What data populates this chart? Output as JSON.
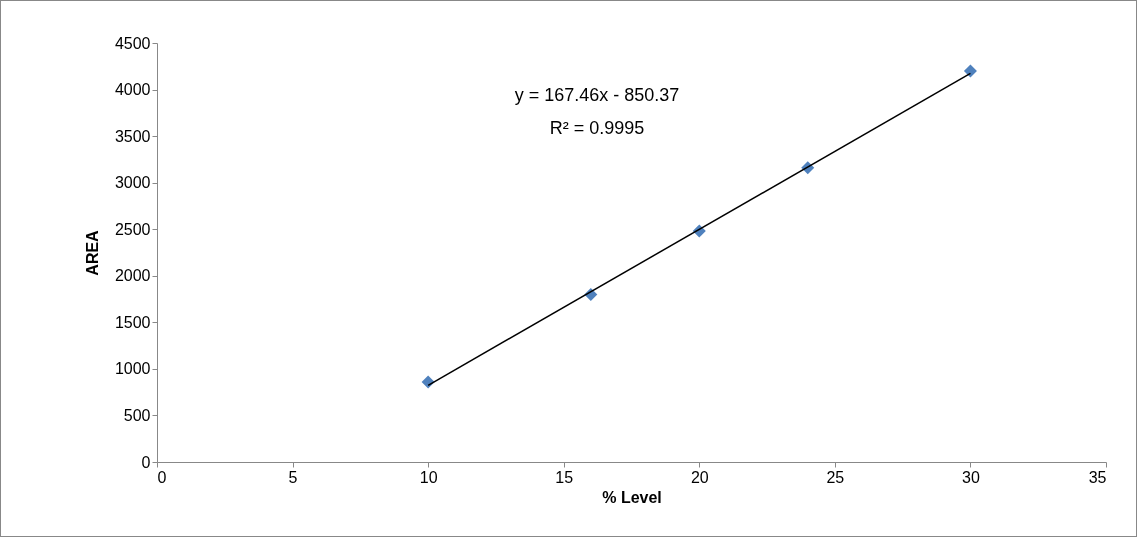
{
  "chart_data": {
    "type": "scatter",
    "xlabel": "% Level",
    "ylabel": "AREA",
    "x": [
      10,
      16,
      20,
      24,
      30
    ],
    "series": [
      {
        "color": "#4f81bd",
        "values": [
          860,
          1800,
          2480,
          3160,
          4200
        ]
      },
      {
        "type": "line",
        "color": "#000000",
        "marker": "none",
        "x": [
          10,
          30
        ],
        "values": [
          824,
          4173
        ]
      }
    ],
    "xlim": [
      0,
      35
    ],
    "xticks": [
      0,
      5,
      10,
      15,
      20,
      25,
      30,
      35
    ],
    "ylim": [
      0,
      4500
    ],
    "yticks": [
      0,
      500,
      1000,
      1500,
      2000,
      2500,
      3000,
      3500,
      4000,
      4500
    ],
    "annotations": [
      "y = 167.46x - 850.37",
      "R² = 0.9995"
    ],
    "grid": false,
    "marker": "diamond",
    "line_style": "solid"
  }
}
